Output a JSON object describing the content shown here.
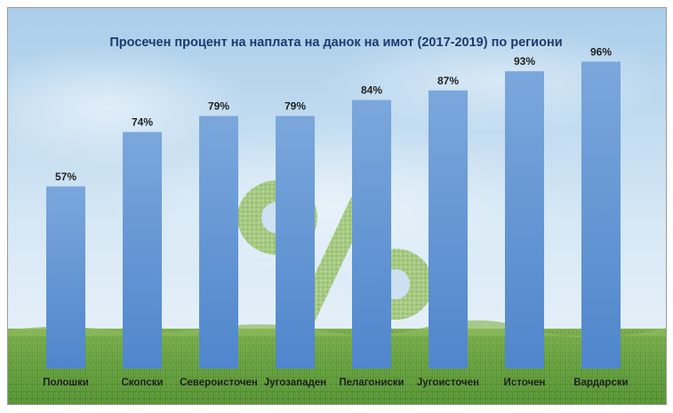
{
  "chart_data": {
    "type": "bar",
    "title": "Просечен процент на наплата на данок на имот (2017-2019) по региони",
    "categories": [
      "Полошки",
      "Скопски",
      "Североисточен",
      "Југозападен",
      "Пелагониски",
      "Југоисточен",
      "Источен",
      "Вардарски"
    ],
    "values": [
      57,
      74,
      79,
      79,
      84,
      87,
      93,
      96
    ],
    "value_labels": [
      "57%",
      "74%",
      "79%",
      "79%",
      "84%",
      "87%",
      "93%",
      "96%"
    ],
    "xlabel": "",
    "ylabel": "",
    "ylim": [
      0,
      100
    ],
    "grid": false,
    "legend": "none",
    "background": "sky and grass photo with a grass percent sign",
    "bar_color_top": "#7ba7dc",
    "bar_color_bottom": "#4f86cc",
    "title_color": "#1f3a6e"
  }
}
